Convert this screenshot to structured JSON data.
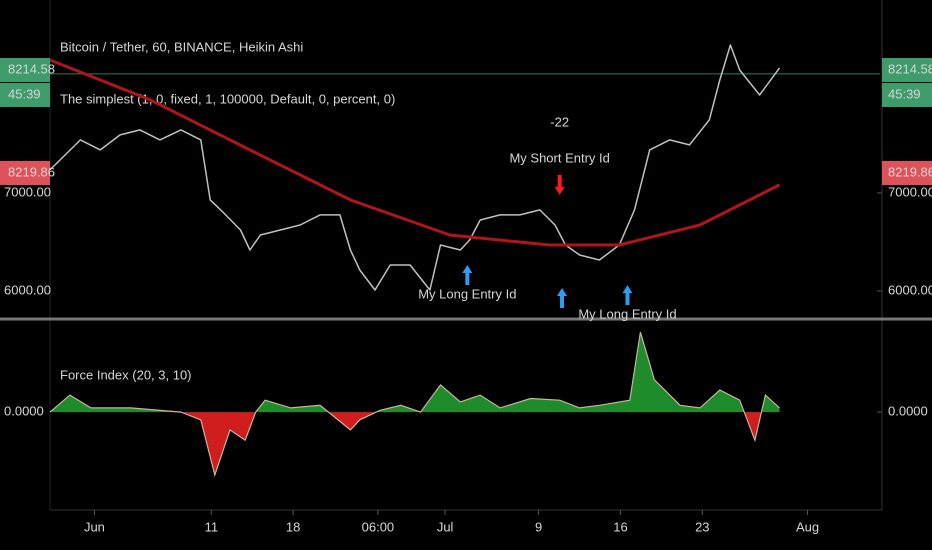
{
  "chart_data": [
    {
      "type": "line",
      "title": "Bitcoin / Tether, 60, BINANCE, Heikin Ashi",
      "subtitle": "The simplest (1, 0, fixed, 1, 100000, Default, 0, percent, 0)",
      "xlim": [
        -2.8,
        68.2
      ],
      "ylim": [
        5724,
        8969
      ],
      "yticks": [
        {
          "value": 6000,
          "label": "6000.00"
        },
        {
          "value": 7000,
          "label": "7000.00"
        }
      ],
      "last_price": {
        "value": 8214.58,
        "label": "8214.58"
      },
      "countdown": "45:39",
      "ask_label": "8219.86",
      "series": [
        {
          "name": "price",
          "color": "#b9c4bc",
          "x": [
            -2.8,
            -0.2,
            1.5,
            3.2,
            4.9,
            6.6,
            8.4,
            10.1,
            10.9,
            11.8,
            13.5,
            14.3,
            15.2,
            16.9,
            18.6,
            20.3,
            22.0,
            22.9,
            23.7,
            25.0,
            26.3,
            28.0,
            29.7,
            30.6,
            32.3,
            33.1,
            34.0,
            35.7,
            37.4,
            39.1,
            40.4,
            41.3,
            42.5,
            44.2,
            45.9,
            47.2,
            48.5,
            50.2,
            51.9,
            53.6,
            54.5,
            55.4,
            56.2,
            57.9,
            59.6
          ],
          "values": [
            7235,
            7541,
            7439,
            7592,
            7643,
            7541,
            7643,
            7541,
            6929,
            6827,
            6622,
            6418,
            6571,
            6622,
            6673,
            6776,
            6776,
            6418,
            6214,
            6010,
            6265,
            6265,
            6010,
            6469,
            6418,
            6520,
            6724,
            6776,
            6776,
            6827,
            6673,
            6469,
            6367,
            6316,
            6469,
            6827,
            7439,
            7541,
            7490,
            7745,
            8153,
            8510,
            8255,
            8000,
            8276
          ]
        },
        {
          "name": "ma",
          "color": "#b0141c",
          "x": [
            -2.8,
            5.8,
            14.3,
            22.9,
            31.4,
            39.9,
            45.9,
            52.8,
            59.6
          ],
          "values": [
            8357,
            7949,
            7439,
            6929,
            6571,
            6469,
            6469,
            6673,
            7082
          ]
        }
      ],
      "signals": [
        {
          "side": "long",
          "x": 32.9,
          "price": 6265,
          "label": "My Long Entry Id"
        },
        {
          "side": "short",
          "x": 40.8,
          "price": 6980,
          "label": "My Short Entry Id",
          "annotation": "-22"
        },
        {
          "side": "long",
          "x": 41.0,
          "price": 6030
        },
        {
          "side": "long",
          "x": 46.6,
          "price": 6060,
          "label": "My Long Entry Id"
        }
      ]
    },
    {
      "type": "area",
      "title": "Force Index (20, 3, 10)",
      "xlim": [
        -2.8,
        68.2
      ],
      "ylim": [
        -0.94,
        1.06
      ],
      "yticks": [
        {
          "value": 0,
          "label": "0.0000"
        }
      ],
      "xticks": [
        {
          "value": 1,
          "label": "Jun"
        },
        11,
        18,
        {
          "value": 25.25,
          "label": "06:00"
        },
        {
          "value": 31,
          "label": "Jul"
        },
        {
          "value": 39,
          "label": "9"
        },
        {
          "value": 46,
          "label": "16"
        },
        {
          "value": 53,
          "label": "23"
        },
        {
          "value": 62,
          "label": "Aug"
        }
      ],
      "pos_color": "#1e8c2a",
      "neg_color": "#d01e1e",
      "line_color": "#c8b49a",
      "series": [
        {
          "name": "force",
          "x": [
            -2.8,
            -1.1,
            0.7,
            4.1,
            8.4,
            10.1,
            11.3,
            12.6,
            13.9,
            14.8,
            15.6,
            17.8,
            20.3,
            22.9,
            23.7,
            25.4,
            27.2,
            28.9,
            30.6,
            32.3,
            34.0,
            35.7,
            38.3,
            40.8,
            42.5,
            44.2,
            46.8,
            47.7,
            48.9,
            51.1,
            52.8,
            54.5,
            56.2,
            57.5,
            58.4,
            59.6
          ],
          "values": [
            0,
            0.2,
            0.05,
            0.05,
            0,
            -0.09,
            -0.74,
            -0.21,
            -0.33,
            0,
            0.14,
            0.05,
            0.08,
            -0.21,
            -0.09,
            0.02,
            0.08,
            0,
            0.32,
            0.12,
            0.2,
            0.05,
            0.16,
            0.14,
            0.05,
            0.08,
            0.14,
            0.94,
            0.38,
            0.08,
            0.05,
            0.26,
            0.14,
            -0.33,
            0.2,
            0.05
          ]
        }
      ]
    }
  ]
}
